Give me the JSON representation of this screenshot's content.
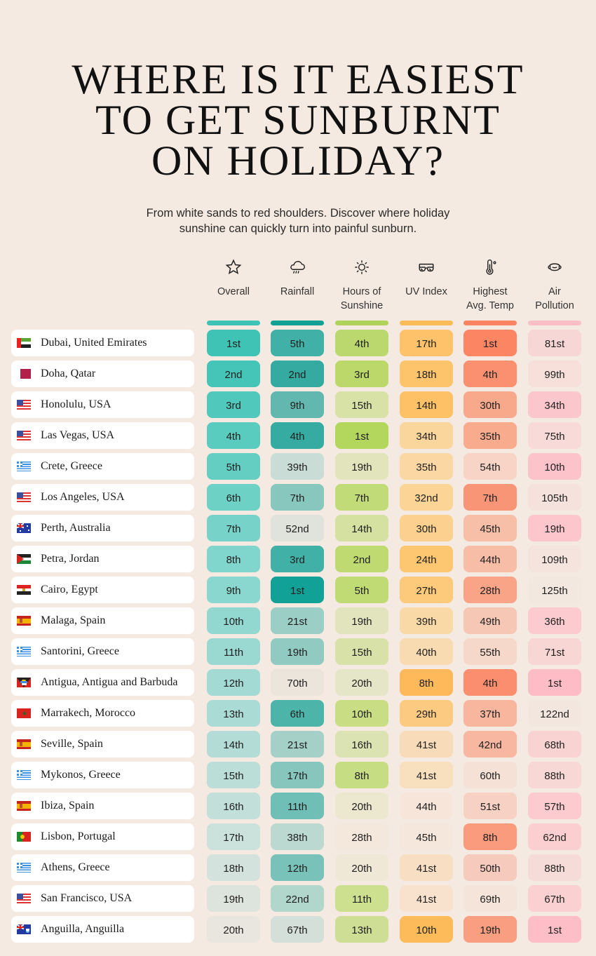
{
  "title_lines": [
    "WHERE IS IT EASIEST",
    "TO GET SUNBURNT",
    "ON HOLIDAY?"
  ],
  "subtitle_lines": [
    "From white sands to red shoulders. Discover where holiday",
    "sunshine can quickly turn into painful sunburn."
  ],
  "columns": [
    {
      "key": "overall",
      "label_lines": [
        "Overall"
      ],
      "icon": "star-icon",
      "color": "#3fc3b5"
    },
    {
      "key": "rainfall",
      "label_lines": [
        "Rainfall"
      ],
      "icon": "rain-cloud-icon",
      "color": "#13a196"
    },
    {
      "key": "sunshine",
      "label_lines": [
        "Hours of",
        "Sunshine"
      ],
      "icon": "sun-icon",
      "color": "#afd35a"
    },
    {
      "key": "uv",
      "label_lines": [
        "UV Index"
      ],
      "icon": "sunglasses-icon",
      "color": "#fdbc58"
    },
    {
      "key": "temp",
      "label_lines": [
        "Highest",
        "Avg. Temp"
      ],
      "icon": "thermometer-icon",
      "color": "#fc8462"
    },
    {
      "key": "pollution",
      "label_lines": [
        "Air",
        "Pollution"
      ],
      "icon": "face-mask-icon",
      "color": "#fcbfc7"
    }
  ],
  "chart_data": {
    "type": "table",
    "title": "Where is it easiest to get sunburnt on holiday?",
    "columns": [
      "Overall",
      "Rainfall",
      "Hours of Sunshine",
      "UV Index",
      "Highest Avg. Temp",
      "Air Pollution"
    ],
    "rows": [
      {
        "city": "Dubai, United Emirates",
        "flag": "uae",
        "ranks": [
          "1st",
          "5th",
          "4th",
          "17th",
          "1st",
          "81st"
        ]
      },
      {
        "city": "Doha, Qatar",
        "flag": "qatar",
        "ranks": [
          "2nd",
          "2nd",
          "3rd",
          "18th",
          "4th",
          "99th"
        ]
      },
      {
        "city": "Honolulu, USA",
        "flag": "usa",
        "ranks": [
          "3rd",
          "9th",
          "15th",
          "14th",
          "30th",
          "34th"
        ]
      },
      {
        "city": "Las Vegas, USA",
        "flag": "usa",
        "ranks": [
          "4th",
          "4th",
          "1st",
          "34th",
          "35th",
          "75th"
        ]
      },
      {
        "city": "Crete, Greece",
        "flag": "greece",
        "ranks": [
          "5th",
          "39th",
          "19th",
          "35th",
          "54th",
          "10th"
        ]
      },
      {
        "city": "Los Angeles, USA",
        "flag": "usa",
        "ranks": [
          "6th",
          "7th",
          "7th",
          "32nd",
          "7th",
          "105th"
        ]
      },
      {
        "city": "Perth, Australia",
        "flag": "australia",
        "ranks": [
          "7th",
          "52nd",
          "14th",
          "30th",
          "45th",
          "19th"
        ]
      },
      {
        "city": "Petra, Jordan",
        "flag": "jordan",
        "ranks": [
          "8th",
          "3rd",
          "2nd",
          "24th",
          "44th",
          "109th"
        ]
      },
      {
        "city": "Cairo, Egypt",
        "flag": "egypt",
        "ranks": [
          "9th",
          "1st",
          "5th",
          "27th",
          "28th",
          "125th"
        ]
      },
      {
        "city": "Malaga, Spain",
        "flag": "spain",
        "ranks": [
          "10th",
          "21st",
          "19th",
          "39th",
          "49th",
          "36th"
        ]
      },
      {
        "city": "Santorini, Greece",
        "flag": "greece",
        "ranks": [
          "11th",
          "19th",
          "15th",
          "40th",
          "55th",
          "71st"
        ]
      },
      {
        "city": "Antigua, Antigua and Barbuda",
        "flag": "antigua",
        "ranks": [
          "12th",
          "70th",
          "20th",
          "8th",
          "4th",
          "1st"
        ]
      },
      {
        "city": "Marrakech, Morocco",
        "flag": "morocco",
        "ranks": [
          "13th",
          "6th",
          "10th",
          "29th",
          "37th",
          "122nd"
        ]
      },
      {
        "city": "Seville, Spain",
        "flag": "spain",
        "ranks": [
          "14th",
          "21st",
          "16th",
          "41st",
          "42nd",
          "68th"
        ]
      },
      {
        "city": "Mykonos, Greece",
        "flag": "greece",
        "ranks": [
          "15th",
          "17th",
          "8th",
          "41st",
          "60th",
          "88th"
        ]
      },
      {
        "city": "Ibiza, Spain",
        "flag": "spain",
        "ranks": [
          "16th",
          "11th",
          "20th",
          "44th",
          "51st",
          "57th"
        ]
      },
      {
        "city": "Lisbon, Portugal",
        "flag": "portugal",
        "ranks": [
          "17th",
          "38th",
          "28th",
          "45th",
          "8th",
          "62nd"
        ]
      },
      {
        "city": "Athens, Greece",
        "flag": "greece",
        "ranks": [
          "18th",
          "12th",
          "20th",
          "41st",
          "50th",
          "88th"
        ]
      },
      {
        "city": "San Francisco, USA",
        "flag": "usa",
        "ranks": [
          "19th",
          "22nd",
          "11th",
          "41st",
          "69th",
          "67th"
        ]
      },
      {
        "city": "Anguilla, Anguilla",
        "flag": "anguilla",
        "ranks": [
          "20th",
          "67th",
          "13th",
          "10th",
          "19th",
          "1st"
        ]
      }
    ],
    "cell_colors": [
      [
        "#3fc3b5",
        "#41b0a6",
        "#bbd86f",
        "#fec36a",
        "#fc8563",
        "#f7d7d5"
      ],
      [
        "#44c5b8",
        "#35aaa0",
        "#bcd86a",
        "#fec46c",
        "#fb9070",
        "#f7e0da"
      ],
      [
        "#50c9bc",
        "#62b8ae",
        "#d9e2a6",
        "#fec166",
        "#f9a98b",
        "#fbc6cc"
      ],
      [
        "#5acbbf",
        "#36aba1",
        "#b3d65c",
        "#fad59c",
        "#f9ab8e",
        "#f8dad8"
      ],
      [
        "#64cec3",
        "#c9ddd6",
        "#e2e4bc",
        "#fbd7a3",
        "#f7d4c5",
        "#fcc3cb"
      ],
      [
        "#6ed1c6",
        "#88c7bd",
        "#c1db79",
        "#fcd495",
        "#f99577",
        "#f6e2dc"
      ],
      [
        "#77d3c9",
        "#dfe3db",
        "#d4e1a1",
        "#fcd08f",
        "#f7bfa8",
        "#fcc6cc"
      ],
      [
        "#80d5cc",
        "#41b0a6",
        "#bfda70",
        "#fdc670",
        "#f8bda6",
        "#f4e4dd"
      ],
      [
        "#89d7cf",
        "#12a196",
        "#c0da74",
        "#fdc97b",
        "#f9a387",
        "#f3e8df"
      ],
      [
        "#92d8d0",
        "#9bcec5",
        "#e1e4bd",
        "#f9d9a6",
        "#f7c7b6",
        "#fbcbcf"
      ],
      [
        "#9ad9d2",
        "#90cac1",
        "#d8e2a8",
        "#f8dbb1",
        "#f5d8ca",
        "#f8d6d4"
      ],
      [
        "#a3dbd4",
        "#ebe5dc",
        "#e5e6c7",
        "#feb95a",
        "#fb8e6e",
        "#fdbcc6"
      ],
      [
        "#abdbd5",
        "#4db4a9",
        "#c8dd84",
        "#fdca82",
        "#f8b69e",
        "#f3e6de"
      ],
      [
        "#b3dcd6",
        "#a5d0c8",
        "#dce3b2",
        "#f8dcb9",
        "#f8b7a1",
        "#f9d3d2"
      ],
      [
        "#bbded8",
        "#86c6bc",
        "#c7dd83",
        "#f8dfbd",
        "#f5e1d6",
        "#f8d8d5"
      ],
      [
        "#c2dfda",
        "#6fbfb6",
        "#ece7cf",
        "#f6e5d8",
        "#f7d1c3",
        "#fbcbcf"
      ],
      [
        "#cbe1db",
        "#bcd9d1",
        "#f4e8dc",
        "#f5e7dc",
        "#f99b7c",
        "#fbcfd0"
      ],
      [
        "#d3e2dc",
        "#79c2b9",
        "#efe8d7",
        "#f8dfc4",
        "#f6cbbd",
        "#f6dcd8"
      ],
      [
        "#dde4dd",
        "#b1d6cc",
        "#cde090",
        "#f8e2cd",
        "#f5e4da",
        "#fad0d0"
      ],
      [
        "#e8e6de",
        "#d3dfd8",
        "#cfde95",
        "#fdbb5a",
        "#f99e80",
        "#fdbec7"
      ]
    ]
  }
}
